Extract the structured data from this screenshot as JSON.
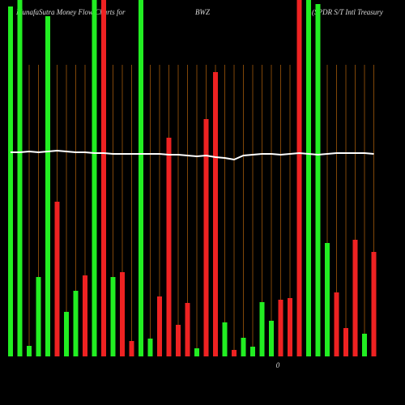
{
  "chart_data": {
    "type": "bar",
    "title_left": "MunafaSutra  Money Flow  Charts for",
    "title_symbol": "BWZ",
    "title_right": "(SPDR S/T Intl Treasury",
    "annotation": "0",
    "values": [
      432,
      440,
      13,
      98,
      420,
      191,
      55,
      81,
      100,
      440,
      440,
      98,
      104,
      19,
      440,
      22,
      74,
      270,
      39,
      66,
      10,
      293,
      351,
      42,
      8,
      23,
      12,
      67,
      44,
      70,
      72,
      440,
      440,
      435,
      140,
      79,
      35,
      144,
      28,
      129
    ],
    "colors": [
      "#22ee22",
      "#22ee22",
      "#22ee22",
      "#22ee22",
      "#22ee22",
      "#ee2222",
      "#22ee22",
      "#22ee22",
      "#ee2222",
      "#22ee22",
      "#ee2222",
      "#22ee22",
      "#ee2222",
      "#ee2222",
      "#22ee22",
      "#22ee22",
      "#ee2222",
      "#ee2222",
      "#ee2222",
      "#ee2222",
      "#22ee22",
      "#ee2222",
      "#ee2222",
      "#22ee22",
      "#ee2222",
      "#22ee22",
      "#22ee22",
      "#22ee22",
      "#22ee22",
      "#ee2222",
      "#ee2222",
      "#ee2222",
      "#22ee22",
      "#22ee22",
      "#22ee22",
      "#ee2222",
      "#ee2222",
      "#ee2222",
      "#22ee22",
      "#ee2222"
    ],
    "line": [
      252,
      252,
      253,
      252,
      253,
      254,
      253,
      252,
      252,
      251,
      251,
      250,
      250,
      250,
      250,
      250,
      250,
      249,
      249,
      248,
      247,
      248,
      246,
      245,
      243,
      248,
      249,
      250,
      250,
      249,
      250,
      251,
      250,
      249,
      250,
      251,
      251,
      251,
      251,
      250
    ],
    "line_color": "#ffffff",
    "ylim": [
      0,
      440
    ],
    "grid": true
  }
}
